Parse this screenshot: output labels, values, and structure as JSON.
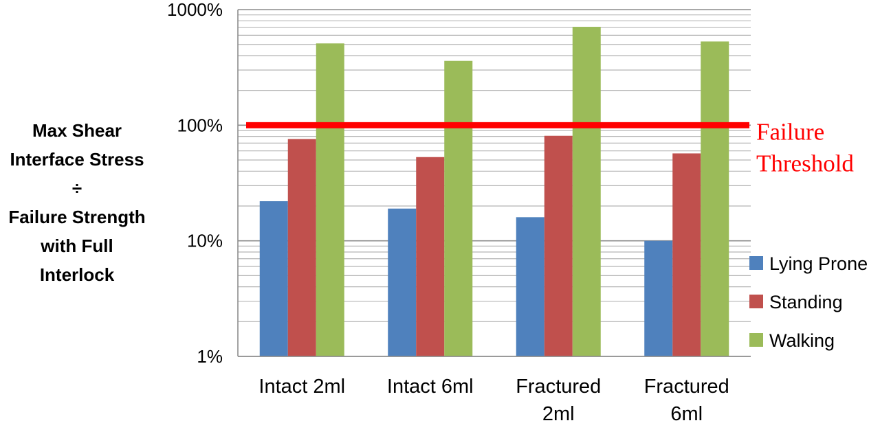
{
  "chart_data": {
    "type": "bar",
    "categories": [
      [
        "Intact 2ml"
      ],
      [
        "Intact 6ml"
      ],
      [
        "Fractured",
        "2ml"
      ],
      [
        "Fractured",
        "6ml"
      ]
    ],
    "series": [
      {
        "name": "Lying Prone",
        "color": "#4f81bd",
        "values": [
          22,
          19,
          16,
          10
        ]
      },
      {
        "name": "Standing",
        "color": "#c0504d",
        "values": [
          76,
          53,
          81,
          57
        ]
      },
      {
        "name": "Walking",
        "color": "#9bbb59",
        "values": [
          510,
          360,
          710,
          530
        ]
      }
    ],
    "yscale": "log",
    "ylim": [
      1,
      1000
    ],
    "yticks": [
      {
        "value": 1,
        "label": "1%"
      },
      {
        "value": 10,
        "label": "10%"
      },
      {
        "value": 100,
        "label": "100%"
      },
      {
        "value": 1000,
        "label": "1000%"
      }
    ],
    "ylabel": [
      "Max Shear",
      "Interface Stress",
      "÷",
      "Failure Strength",
      "with Full",
      "Interlock"
    ],
    "threshold": {
      "value": 100,
      "color": "#ff0000",
      "label": [
        "Failure",
        "Threshold"
      ]
    },
    "grid": true,
    "legend_position": "right"
  }
}
